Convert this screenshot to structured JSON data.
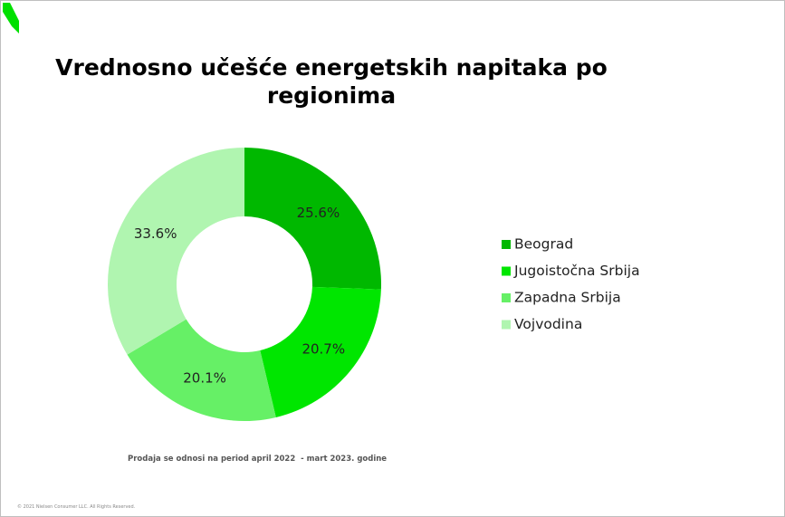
{
  "chart_data": {
    "type": "donut",
    "title": "Vrednosno učešće energetskih napitaka po regionima",
    "categories": [
      "Beograd",
      "Jugoistočna Srbija",
      "Zapadna Srbija",
      "Vojvodina"
    ],
    "values": [
      25.6,
      20.7,
      20.1,
      33.6
    ],
    "value_labels": [
      "25.6%",
      "20.7%",
      "20.1%",
      "33.6%"
    ],
    "colors": [
      "#00b800",
      "#00e600",
      "#66f066",
      "#b0f5b0"
    ],
    "legend": "right",
    "note": "Prodaja se odnosi na period april 2022  - mart 2023. godine"
  },
  "footer": "© 2021 Nielsen Consumer LLC. All Rights Reserved."
}
